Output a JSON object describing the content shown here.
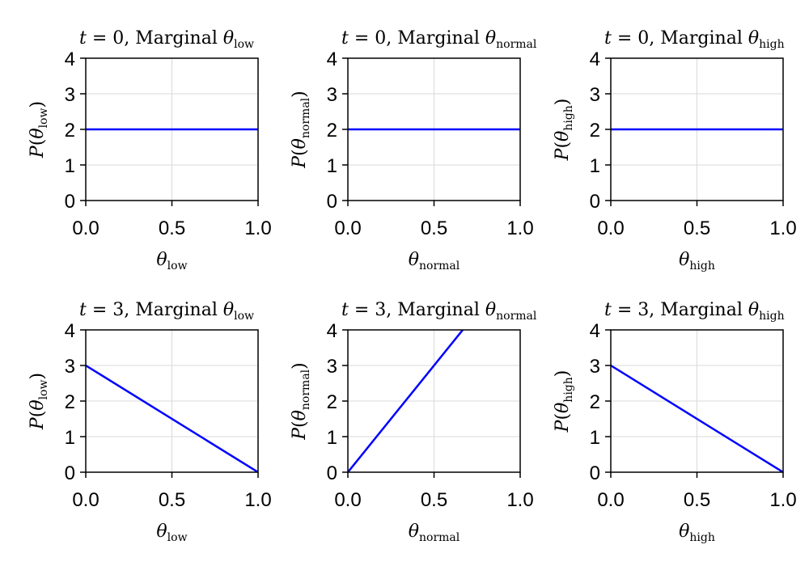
{
  "chart_data": [
    {
      "type": "line",
      "title": {
        "t": "0",
        "text": "Marginal",
        "sub": "low"
      },
      "xlabel": {
        "sub": "low"
      },
      "ylabel": {
        "sub": "low"
      },
      "xlim": [
        0,
        1
      ],
      "ylim": [
        0,
        4
      ],
      "xticks": [
        "0.0",
        "0.5",
        "1.0"
      ],
      "yticks": [
        "0",
        "1",
        "2",
        "3",
        "4"
      ],
      "grid": true,
      "series": [
        {
          "x": [
            0,
            1
          ],
          "y": [
            2,
            2
          ],
          "color": "#0000ff"
        }
      ]
    },
    {
      "type": "line",
      "title": {
        "t": "0",
        "text": "Marginal",
        "sub": "normal"
      },
      "xlabel": {
        "sub": "normal"
      },
      "ylabel": {
        "sub": "normal"
      },
      "xlim": [
        0,
        1
      ],
      "ylim": [
        0,
        4
      ],
      "xticks": [
        "0.0",
        "0.5",
        "1.0"
      ],
      "yticks": [
        "0",
        "1",
        "2",
        "3",
        "4"
      ],
      "grid": true,
      "series": [
        {
          "x": [
            0,
            1
          ],
          "y": [
            2,
            2
          ],
          "color": "#0000ff"
        }
      ]
    },
    {
      "type": "line",
      "title": {
        "t": "0",
        "text": "Marginal",
        "sub": "high"
      },
      "xlabel": {
        "sub": "high"
      },
      "ylabel": {
        "sub": "high"
      },
      "xlim": [
        0,
        1
      ],
      "ylim": [
        0,
        4
      ],
      "xticks": [
        "0.0",
        "0.5",
        "1.0"
      ],
      "yticks": [
        "0",
        "1",
        "2",
        "3",
        "4"
      ],
      "grid": true,
      "series": [
        {
          "x": [
            0,
            1
          ],
          "y": [
            2,
            2
          ],
          "color": "#0000ff"
        }
      ]
    },
    {
      "type": "line",
      "title": {
        "t": "3",
        "text": "Marginal",
        "sub": "low"
      },
      "xlabel": {
        "sub": "low"
      },
      "ylabel": {
        "sub": "low"
      },
      "xlim": [
        0,
        1
      ],
      "ylim": [
        0,
        4
      ],
      "xticks": [
        "0.0",
        "0.5",
        "1.0"
      ],
      "yticks": [
        "0",
        "1",
        "2",
        "3",
        "4"
      ],
      "grid": true,
      "series": [
        {
          "x": [
            0,
            1
          ],
          "y": [
            3,
            0
          ],
          "color": "#0000ff"
        }
      ]
    },
    {
      "type": "line",
      "title": {
        "t": "3",
        "text": "Marginal",
        "sub": "normal"
      },
      "xlabel": {
        "sub": "normal"
      },
      "ylabel": {
        "sub": "normal"
      },
      "xlim": [
        0,
        1
      ],
      "ylim": [
        0,
        4
      ],
      "xticks": [
        "0.0",
        "0.5",
        "1.0"
      ],
      "yticks": [
        "0",
        "1",
        "2",
        "3",
        "4"
      ],
      "grid": true,
      "series": [
        {
          "x": [
            0,
            1
          ],
          "y": [
            0,
            6
          ],
          "color": "#0000ff"
        }
      ]
    },
    {
      "type": "line",
      "title": {
        "t": "3",
        "text": "Marginal",
        "sub": "high"
      },
      "xlabel": {
        "sub": "high"
      },
      "ylabel": {
        "sub": "high"
      },
      "xlim": [
        0,
        1
      ],
      "ylim": [
        0,
        4
      ],
      "xticks": [
        "0.0",
        "0.5",
        "1.0"
      ],
      "yticks": [
        "0",
        "1",
        "2",
        "3",
        "4"
      ],
      "grid": true,
      "series": [
        {
          "x": [
            0,
            1
          ],
          "y": [
            3,
            0
          ],
          "color": "#0000ff"
        }
      ]
    }
  ]
}
